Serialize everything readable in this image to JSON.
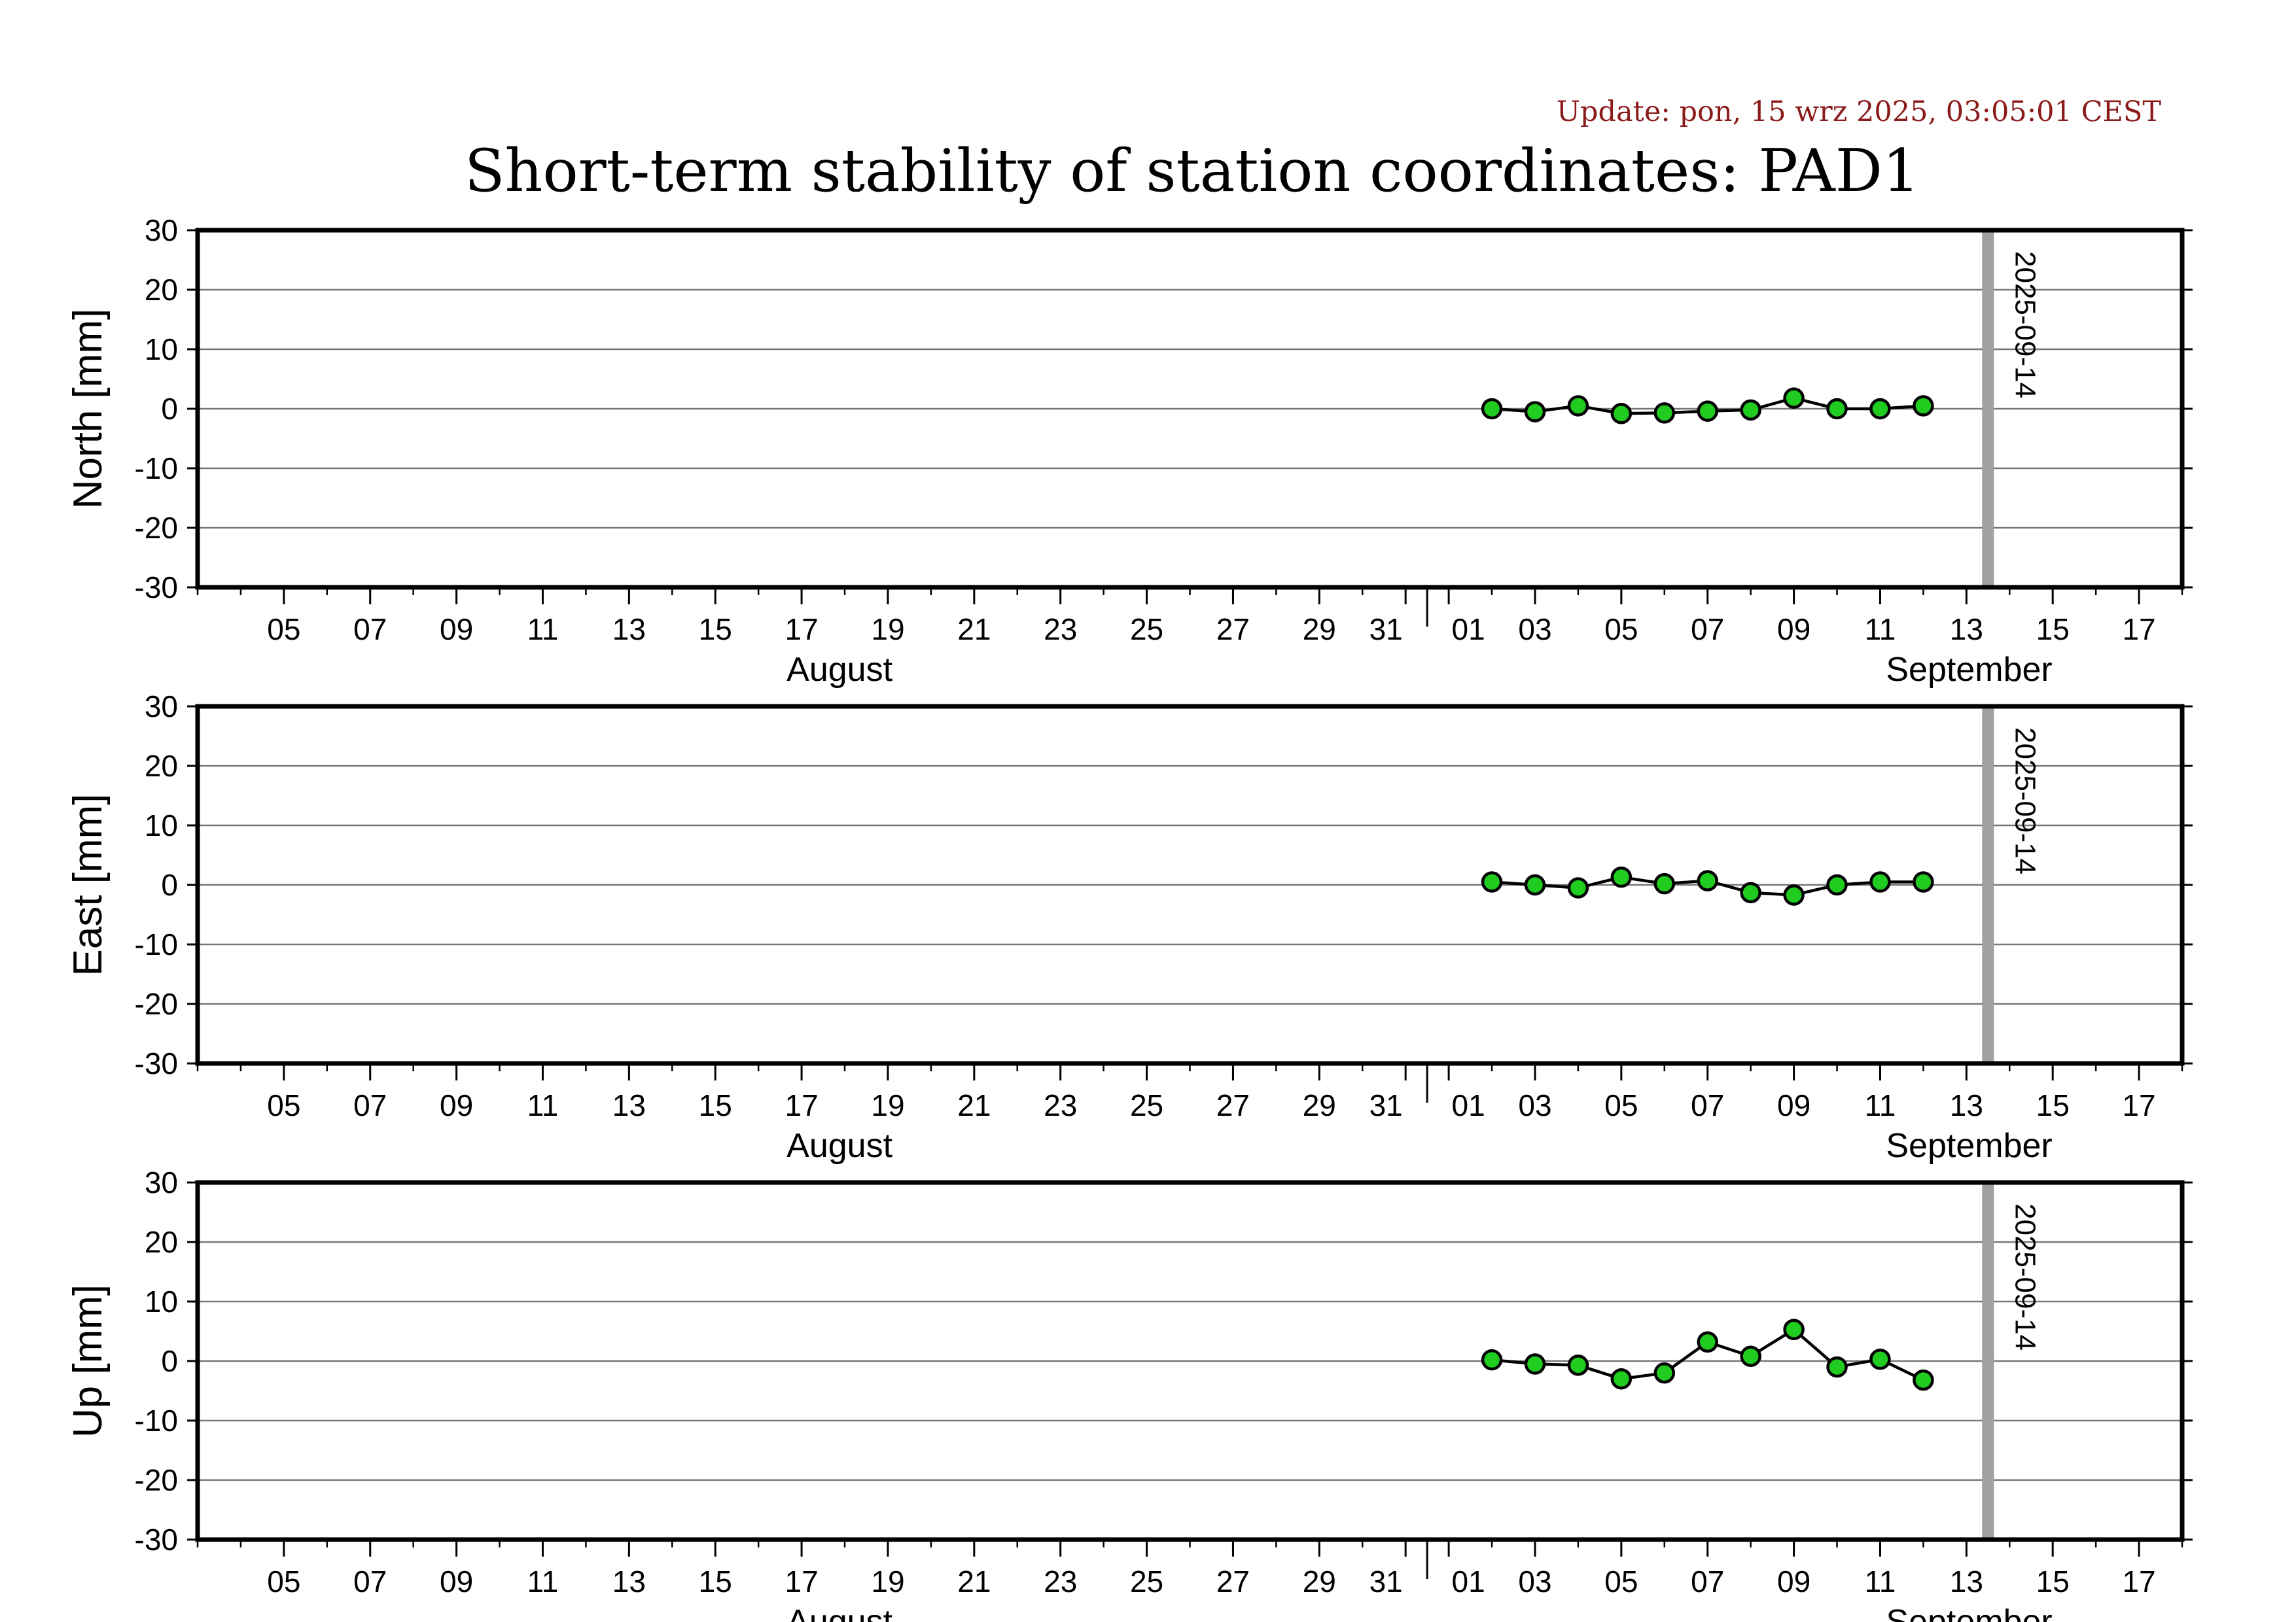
{
  "update_text": "Update: pon, 15 wrz 2025, 03:05:01 CEST",
  "title": "Short-term stability of station coordinates: PAD1",
  "colors": {
    "update_text": "#8b1a1a",
    "marker_fill": "#1fcc1f",
    "marker_stroke": "#000000",
    "line": "#000000",
    "grid": "#777777",
    "frame": "#000000",
    "current_date_line": "#a0a0a0"
  },
  "chart_data": {
    "type": "line",
    "x_range": [
      "2025-08-03",
      "2025-09-18"
    ],
    "x_tick_labels": [
      "05",
      "07",
      "09",
      "11",
      "13",
      "15",
      "17",
      "19",
      "21",
      "23",
      "25",
      "27",
      "29",
      "31",
      "01",
      "03",
      "05",
      "07",
      "09",
      "11",
      "13",
      "15",
      "17"
    ],
    "months": [
      "August",
      "September"
    ],
    "current_date_label": "2025-09-14",
    "ylim": [
      -30,
      30
    ],
    "y_ticks": [
      30,
      20,
      10,
      0,
      -10,
      -20,
      -30
    ],
    "grid": true,
    "panels": [
      {
        "ylabel": "North [mm]",
        "x": [
          "2025-09-02",
          "2025-09-03",
          "2025-09-04",
          "2025-09-05",
          "2025-09-06",
          "2025-09-07",
          "2025-09-08",
          "2025-09-09",
          "2025-09-10",
          "2025-09-11",
          "2025-09-12"
        ],
        "values": [
          0.0,
          -0.5,
          0.5,
          -0.8,
          -0.7,
          -0.4,
          -0.2,
          1.8,
          0.0,
          0.0,
          0.5
        ]
      },
      {
        "ylabel": "East [mm]",
        "x": [
          "2025-09-02",
          "2025-09-03",
          "2025-09-04",
          "2025-09-05",
          "2025-09-06",
          "2025-09-07",
          "2025-09-08",
          "2025-09-09",
          "2025-09-10",
          "2025-09-11",
          "2025-09-12"
        ],
        "values": [
          0.5,
          0.0,
          -0.5,
          1.3,
          0.2,
          0.7,
          -1.3,
          -1.7,
          0.0,
          0.5,
          0.5
        ]
      },
      {
        "ylabel": "Up [mm]",
        "x": [
          "2025-09-02",
          "2025-09-03",
          "2025-09-04",
          "2025-09-05",
          "2025-09-06",
          "2025-09-07",
          "2025-09-08",
          "2025-09-09",
          "2025-09-10",
          "2025-09-11",
          "2025-09-12"
        ],
        "values": [
          0.2,
          -0.5,
          -0.7,
          -3.0,
          -2.0,
          3.2,
          0.8,
          5.3,
          -1.0,
          0.3,
          -3.2
        ]
      }
    ]
  }
}
